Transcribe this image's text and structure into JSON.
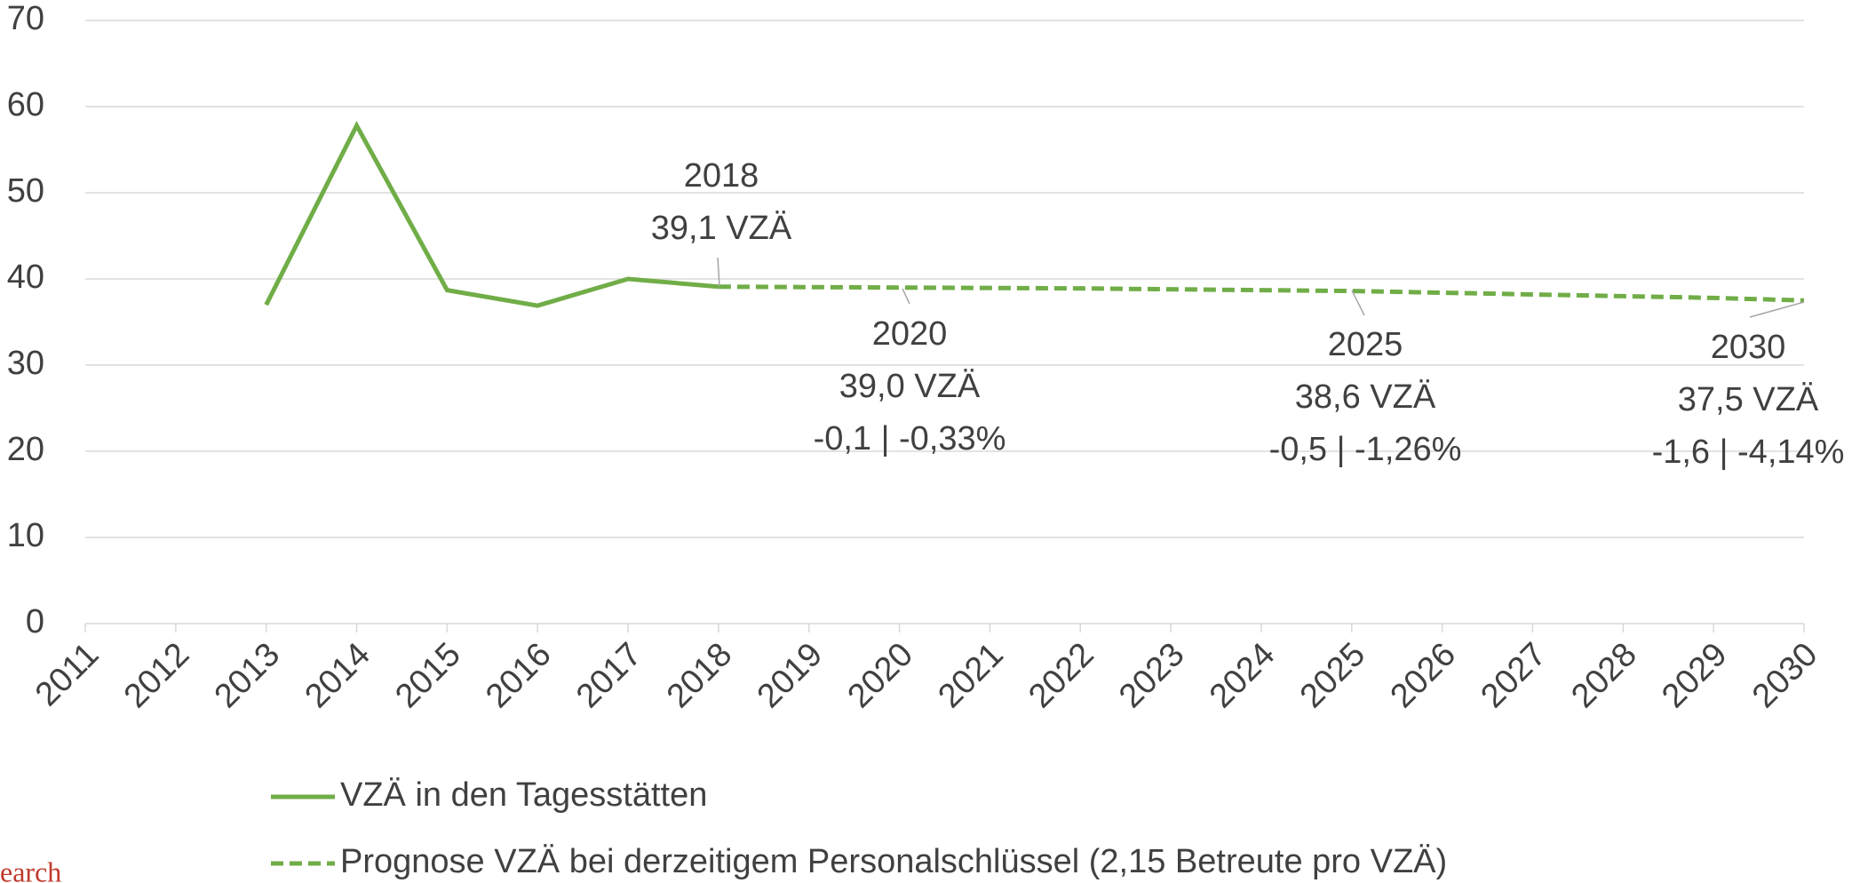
{
  "chart_data": {
    "type": "line",
    "categories": [
      "2011",
      "2012",
      "2013",
      "2014",
      "2015",
      "2016",
      "2017",
      "2018",
      "2019",
      "2020",
      "2021",
      "2022",
      "2023",
      "2024",
      "2025",
      "2026",
      "2027",
      "2028",
      "2029",
      "2030"
    ],
    "series": [
      {
        "name": "VZÄ in den Tagesstätten",
        "color": "#70ad47",
        "dash": false,
        "values": [
          null,
          null,
          37,
          57.8,
          38.7,
          36.9,
          40,
          39.1,
          null,
          null,
          null,
          null,
          null,
          null,
          null,
          null,
          null,
          null,
          null,
          null
        ]
      },
      {
        "name": "Prognose VZÄ bei derzeitigem Personalschlüssel (2,15 Betreute pro VZÄ)",
        "color": "#70ad47",
        "dash": true,
        "values": [
          null,
          null,
          null,
          null,
          null,
          null,
          null,
          39.1,
          39.05,
          39.0,
          38.95,
          38.9,
          38.8,
          38.7,
          38.6,
          38.4,
          38.2,
          38.0,
          37.8,
          37.5
        ]
      }
    ],
    "ylim": [
      0,
      70
    ],
    "yticks": [
      0,
      10,
      20,
      30,
      40,
      50,
      60,
      70
    ],
    "grid": true,
    "annotations": [
      {
        "lines": [
          "2018",
          "39,1 VZÄ"
        ]
      },
      {
        "lines": [
          "2020",
          "39,0 VZÄ",
          "-0,1 | -0,33%"
        ]
      },
      {
        "lines": [
          "2025",
          "38,6 VZÄ",
          "-0,5 | -1,26%"
        ]
      },
      {
        "lines": [
          "2030",
          "37,5 VZÄ",
          "-1,6 | -4,14%"
        ]
      }
    ],
    "source_fragment": "earch"
  }
}
